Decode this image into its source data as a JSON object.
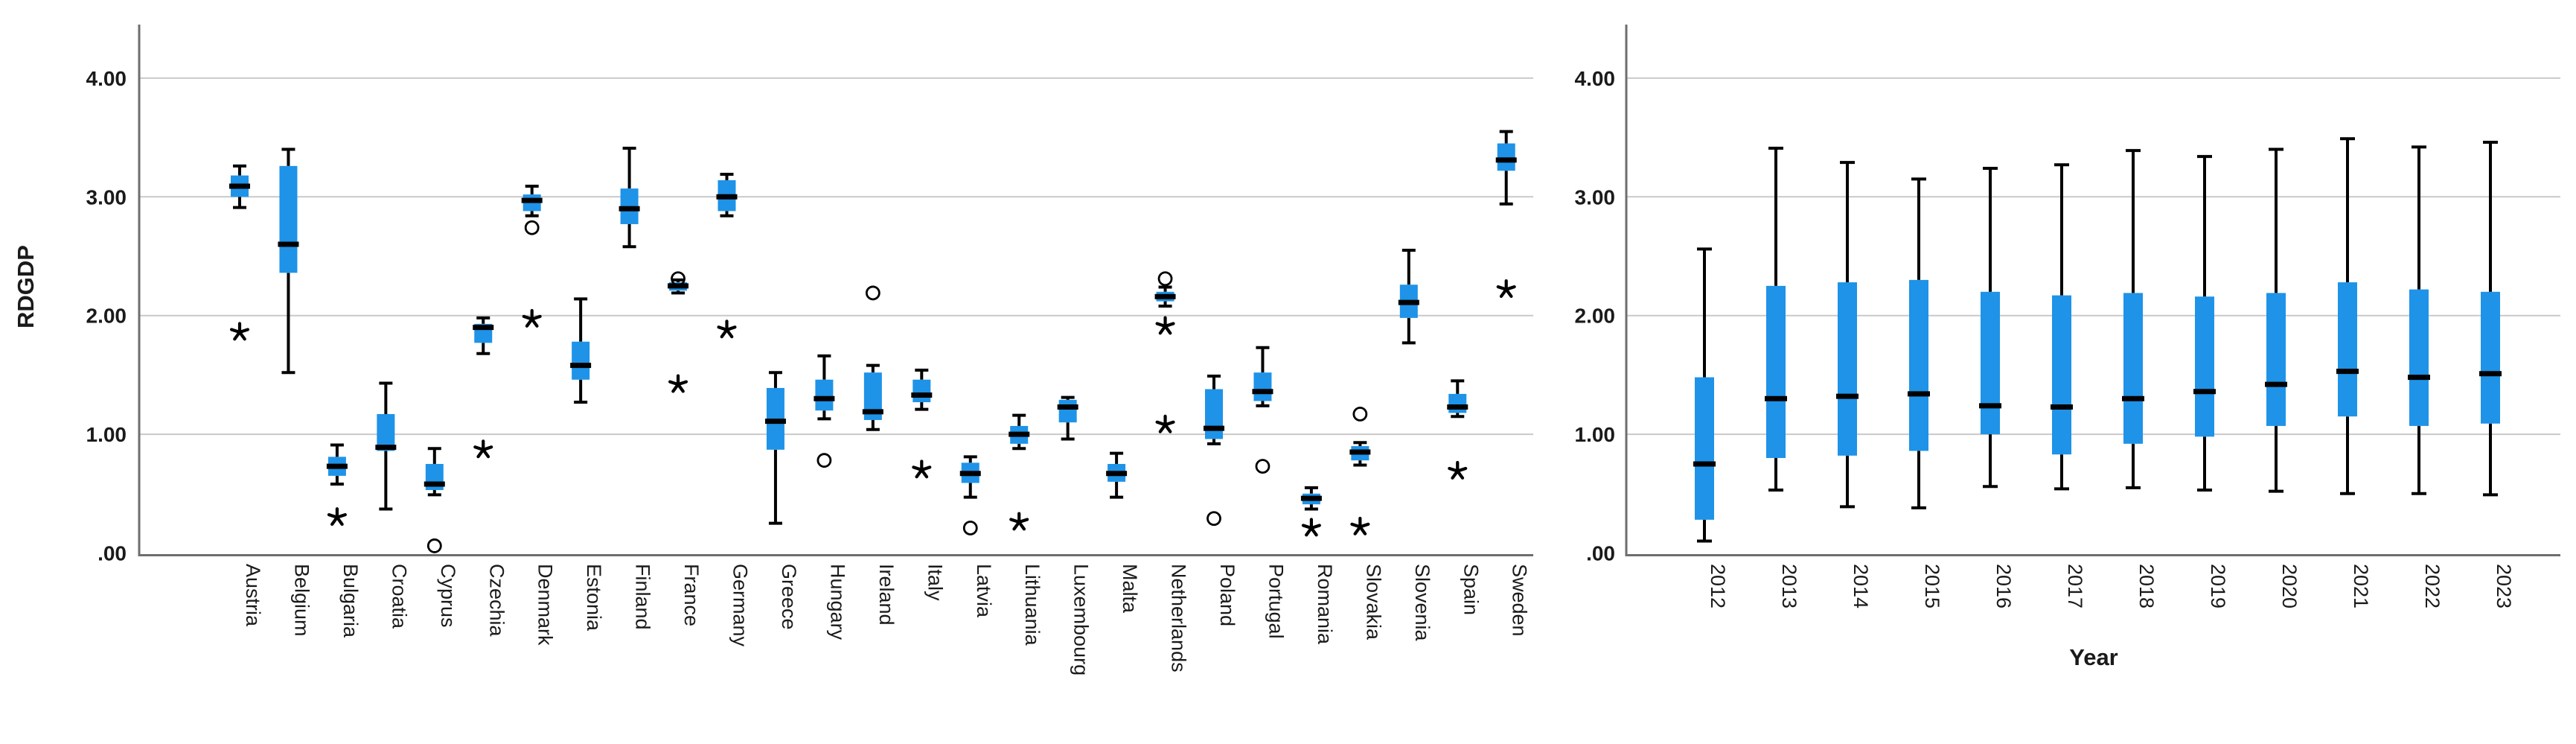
{
  "figure": {
    "background": "#ffffff",
    "left_axis_title": "RDGDP",
    "right_axis_title": "Year",
    "y_tick_labels": [
      "4.00",
      "3.00",
      "2.00",
      "1.00",
      ".00"
    ],
    "y_tick_values": [
      4,
      3,
      2,
      1,
      0
    ]
  },
  "colors": {
    "box_fill": "#1E93E8",
    "line": "#000000",
    "gridline": "#c9c9c9",
    "spine": "#6e6e6e",
    "text": "#1a1a1a"
  },
  "chart_data": [
    {
      "type": "box",
      "title": "",
      "xlabel": "",
      "ylabel": "RDGDP",
      "ylim": [
        0,
        4.45
      ],
      "grid": "horizontal",
      "legend_position": "none",
      "categories": [
        "Austria",
        "Belgium",
        "Bulgaria",
        "Croatia",
        "Cyprus",
        "Czechia",
        "Denmark",
        "Estonia",
        "Finland",
        "France",
        "Germany",
        "Greece",
        "Hungary",
        "Ireland",
        "Italy",
        "Latvia",
        "Lithuania",
        "Luxembourg",
        "Malta",
        "Netherlands",
        "Poland",
        "Portugal",
        "Romania",
        "Slovakia",
        "Slovenia",
        "Spain",
        "Sweden"
      ],
      "series": [
        {
          "label": "Austria",
          "low": 2.91,
          "q1": 3.0,
          "median": 3.09,
          "q3": 3.18,
          "high": 3.26,
          "outliers": [],
          "extremes": [
            1.86
          ]
        },
        {
          "label": "Belgium",
          "low": 1.52,
          "q1": 2.36,
          "median": 2.6,
          "q3": 3.26,
          "high": 3.4,
          "outliers": [],
          "extremes": []
        },
        {
          "label": "Bulgaria",
          "low": 0.58,
          "q1": 0.65,
          "median": 0.73,
          "q3": 0.81,
          "high": 0.91,
          "outliers": [],
          "extremes": [
            0.3
          ]
        },
        {
          "label": "Croatia",
          "low": 0.37,
          "q1": 0.86,
          "median": 0.89,
          "q3": 1.17,
          "high": 1.43,
          "outliers": [],
          "extremes": []
        },
        {
          "label": "Cyprus",
          "low": 0.49,
          "q1": 0.53,
          "median": 0.58,
          "q3": 0.75,
          "high": 0.88,
          "outliers": [
            0.06
          ],
          "extremes": []
        },
        {
          "label": "Czechia",
          "low": 1.68,
          "q1": 1.77,
          "median": 1.9,
          "q3": 1.93,
          "high": 1.98,
          "outliers": [],
          "extremes": [
            0.87
          ]
        },
        {
          "label": "Denmark",
          "low": 2.84,
          "q1": 2.88,
          "median": 2.97,
          "q3": 3.02,
          "high": 3.09,
          "outliers": [
            2.74
          ],
          "extremes": [
            1.97
          ]
        },
        {
          "label": "Estonia",
          "low": 1.27,
          "q1": 1.46,
          "median": 1.58,
          "q3": 1.78,
          "high": 2.14,
          "outliers": [],
          "extremes": []
        },
        {
          "label": "Finland",
          "low": 2.58,
          "q1": 2.77,
          "median": 2.9,
          "q3": 3.07,
          "high": 3.41,
          "outliers": [],
          "extremes": []
        },
        {
          "label": "France",
          "low": 2.19,
          "q1": 2.21,
          "median": 2.25,
          "q3": 2.28,
          "high": 2.3,
          "outliers": [
            2.31
          ],
          "extremes": [
            1.42
          ]
        },
        {
          "label": "Germany",
          "low": 2.84,
          "q1": 2.88,
          "median": 3.0,
          "q3": 3.14,
          "high": 3.19,
          "outliers": [],
          "extremes": [
            1.88
          ]
        },
        {
          "label": "Greece",
          "low": 0.25,
          "q1": 0.87,
          "median": 1.11,
          "q3": 1.39,
          "high": 1.52,
          "outliers": [],
          "extremes": []
        },
        {
          "label": "Hungary",
          "low": 1.13,
          "q1": 1.2,
          "median": 1.3,
          "q3": 1.46,
          "high": 1.66,
          "outliers": [
            0.78
          ],
          "extremes": []
        },
        {
          "label": "Ireland",
          "low": 1.04,
          "q1": 1.12,
          "median": 1.19,
          "q3": 1.52,
          "high": 1.58,
          "outliers": [
            2.19
          ],
          "extremes": []
        },
        {
          "label": "Italy",
          "low": 1.21,
          "q1": 1.27,
          "median": 1.33,
          "q3": 1.46,
          "high": 1.54,
          "outliers": [],
          "extremes": [
            0.7
          ]
        },
        {
          "label": "Latvia",
          "low": 0.47,
          "q1": 0.59,
          "median": 0.67,
          "q3": 0.76,
          "high": 0.81,
          "outliers": [
            0.21
          ],
          "extremes": []
        },
        {
          "label": "Lithuania",
          "low": 0.88,
          "q1": 0.92,
          "median": 1.0,
          "q3": 1.07,
          "high": 1.16,
          "outliers": [],
          "extremes": [
            0.26
          ]
        },
        {
          "label": "Luxembourg",
          "low": 0.96,
          "q1": 1.1,
          "median": 1.23,
          "q3": 1.29,
          "high": 1.31,
          "outliers": [],
          "extremes": []
        },
        {
          "label": "Malta",
          "low": 0.47,
          "q1": 0.6,
          "median": 0.67,
          "q3": 0.75,
          "high": 0.84,
          "outliers": [],
          "extremes": []
        },
        {
          "label": "Netherlands",
          "low": 2.08,
          "q1": 2.12,
          "median": 2.16,
          "q3": 2.2,
          "high": 2.24,
          "outliers": [
            2.31
          ],
          "extremes": [
            1.91,
            1.08
          ]
        },
        {
          "label": "Poland",
          "low": 0.92,
          "q1": 0.96,
          "median": 1.05,
          "q3": 1.38,
          "high": 1.49,
          "outliers": [
            0.29
          ],
          "extremes": []
        },
        {
          "label": "Portugal",
          "low": 1.24,
          "q1": 1.28,
          "median": 1.36,
          "q3": 1.52,
          "high": 1.73,
          "outliers": [
            0.73
          ],
          "extremes": []
        },
        {
          "label": "Romania",
          "low": 0.37,
          "q1": 0.41,
          "median": 0.46,
          "q3": 0.5,
          "high": 0.55,
          "outliers": [],
          "extremes": [
            0.21
          ]
        },
        {
          "label": "Slovakia",
          "low": 0.74,
          "q1": 0.78,
          "median": 0.85,
          "q3": 0.9,
          "high": 0.93,
          "outliers": [
            1.17
          ],
          "extremes": [
            0.22
          ]
        },
        {
          "label": "Slovenia",
          "low": 1.77,
          "q1": 1.98,
          "median": 2.11,
          "q3": 2.26,
          "high": 2.55,
          "outliers": [],
          "extremes": []
        },
        {
          "label": "Spain",
          "low": 1.15,
          "q1": 1.18,
          "median": 1.23,
          "q3": 1.34,
          "high": 1.45,
          "outliers": [],
          "extremes": [
            0.69
          ]
        },
        {
          "label": "Sweden",
          "low": 2.94,
          "q1": 3.22,
          "median": 3.31,
          "q3": 3.45,
          "high": 3.55,
          "outliers": [],
          "extremes": [
            2.22
          ]
        }
      ]
    },
    {
      "type": "box",
      "title": "",
      "xlabel": "Year",
      "ylabel": "",
      "ylim": [
        0,
        4.45
      ],
      "grid": "horizontal",
      "legend_position": "none",
      "categories": [
        "2012",
        "2013",
        "2014",
        "2015",
        "2016",
        "2017",
        "2018",
        "2019",
        "2020",
        "2021",
        "2022",
        "2023"
      ],
      "series": [
        {
          "label": "2012",
          "low": 0.1,
          "q1": 0.28,
          "median": 0.75,
          "q3": 1.48,
          "high": 2.56,
          "outliers": [],
          "extremes": []
        },
        {
          "label": "2013",
          "low": 0.53,
          "q1": 0.8,
          "median": 1.3,
          "q3": 2.25,
          "high": 3.41,
          "outliers": [],
          "extremes": []
        },
        {
          "label": "2014",
          "low": 0.39,
          "q1": 0.82,
          "median": 1.32,
          "q3": 2.28,
          "high": 3.29,
          "outliers": [],
          "extremes": []
        },
        {
          "label": "2015",
          "low": 0.38,
          "q1": 0.86,
          "median": 1.34,
          "q3": 2.3,
          "high": 3.15,
          "outliers": [],
          "extremes": []
        },
        {
          "label": "2016",
          "low": 0.56,
          "q1": 1.0,
          "median": 1.24,
          "q3": 2.2,
          "high": 3.24,
          "outliers": [],
          "extremes": []
        },
        {
          "label": "2017",
          "low": 0.54,
          "q1": 0.83,
          "median": 1.23,
          "q3": 2.17,
          "high": 3.27,
          "outliers": [],
          "extremes": []
        },
        {
          "label": "2018",
          "low": 0.55,
          "q1": 0.92,
          "median": 1.3,
          "q3": 2.19,
          "high": 3.39,
          "outliers": [],
          "extremes": []
        },
        {
          "label": "2019",
          "low": 0.53,
          "q1": 0.98,
          "median": 1.36,
          "q3": 2.16,
          "high": 3.34,
          "outliers": [],
          "extremes": []
        },
        {
          "label": "2020",
          "low": 0.52,
          "q1": 1.07,
          "median": 1.42,
          "q3": 2.19,
          "high": 3.4,
          "outliers": [],
          "extremes": []
        },
        {
          "label": "2021",
          "low": 0.5,
          "q1": 1.15,
          "median": 1.53,
          "q3": 2.28,
          "high": 3.49,
          "outliers": [],
          "extremes": []
        },
        {
          "label": "2022",
          "low": 0.5,
          "q1": 1.07,
          "median": 1.48,
          "q3": 2.22,
          "high": 3.42,
          "outliers": [],
          "extremes": []
        },
        {
          "label": "2023",
          "low": 0.49,
          "q1": 1.09,
          "median": 1.51,
          "q3": 2.2,
          "high": 3.46,
          "outliers": [],
          "extremes": []
        }
      ]
    }
  ]
}
